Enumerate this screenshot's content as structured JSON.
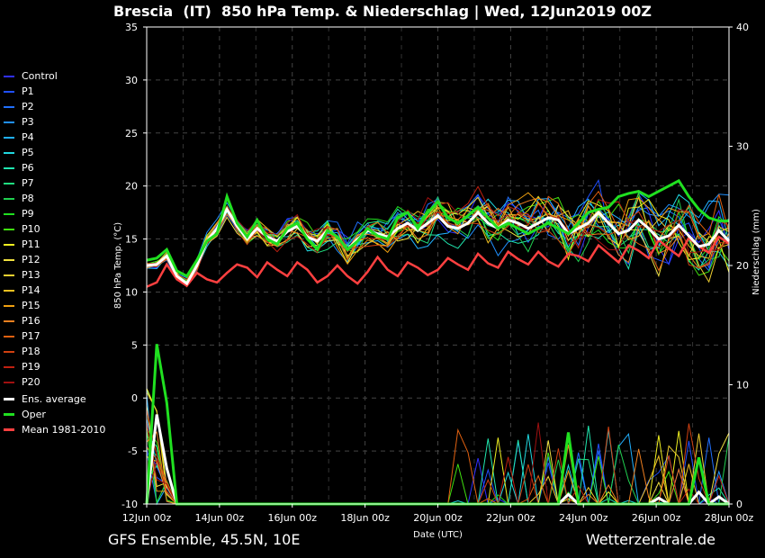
{
  "title": "Brescia  (IT)  850 hPa Temp. & Niederschlag | Wed, 12Jun2019 00Z",
  "footer_left": "GFS Ensemble, 45.5N, 10E",
  "footer_right": "Wetterzentrale.de",
  "chart_data": {
    "type": "line",
    "xlabel": "Date (UTC)",
    "ylabel": "850 hPa Temp. (°C)",
    "ylabel_right": "Niederschlag (mm)",
    "ylim": [
      -10,
      35
    ],
    "ylim_right": [
      0,
      40
    ],
    "yticks": [
      -10,
      -5,
      0,
      5,
      10,
      15,
      20,
      25,
      30,
      35
    ],
    "yticks_right": [
      0,
      10,
      20,
      30,
      40
    ],
    "x_range_days": [
      0,
      16
    ],
    "xticks": [
      {
        "day": 0,
        "label": "12Jun 00z"
      },
      {
        "day": 2,
        "label": "14Jun 00z"
      },
      {
        "day": 4,
        "label": "16Jun 00z"
      },
      {
        "day": 6,
        "label": "18Jun 00z"
      },
      {
        "day": 8,
        "label": "20Jun 00z"
      },
      {
        "day": 10,
        "label": "22Jun 00z"
      },
      {
        "day": 12,
        "label": "24Jun 00z"
      },
      {
        "day": 14,
        "label": "26Jun 00z"
      },
      {
        "day": 16,
        "label": "28Jun 00z"
      }
    ],
    "grid": true,
    "legend_position": "left",
    "legend": [
      {
        "name": "Control",
        "color": "#3030ff"
      },
      {
        "name": "P1",
        "color": "#2050ff"
      },
      {
        "name": "P2",
        "color": "#2070ff"
      },
      {
        "name": "P3",
        "color": "#2090ff"
      },
      {
        "name": "P4",
        "color": "#20b0ff"
      },
      {
        "name": "P5",
        "color": "#20d8e0"
      },
      {
        "name": "P6",
        "color": "#20e8b0"
      },
      {
        "name": "P7",
        "color": "#20e080"
      },
      {
        "name": "P8",
        "color": "#20d050"
      },
      {
        "name": "P9",
        "color": "#20e020"
      },
      {
        "name": "P10",
        "color": "#40e010"
      },
      {
        "name": "P11",
        "color": "#f0f020"
      },
      {
        "name": "P12",
        "color": "#f0e040"
      },
      {
        "name": "P13",
        "color": "#f0d030"
      },
      {
        "name": "P14",
        "color": "#f0c020"
      },
      {
        "name": "P15",
        "color": "#f0a010"
      },
      {
        "name": "P16",
        "color": "#f08020"
      },
      {
        "name": "P17",
        "color": "#e06010"
      },
      {
        "name": "P18",
        "color": "#d04010"
      },
      {
        "name": "P19",
        "color": "#c02010"
      },
      {
        "name": "P20",
        "color": "#a01010"
      },
      {
        "name": "Ens. average",
        "color": "#ffffff"
      },
      {
        "name": "Oper",
        "color": "#20e020"
      },
      {
        "name": "Mean 1981-2010",
        "color": "#ff4040"
      }
    ],
    "temp_avg": [
      12.5,
      12.6,
      13.4,
      11.5,
      10.8,
      12.5,
      14.8,
      16,
      17.8,
      16.2,
      15,
      16,
      15.2,
      14.8,
      15.7,
      16.2,
      15.2,
      14.8,
      15.8,
      15.2,
      14,
      15,
      15.8,
      15.5,
      15.2,
      16,
      16.5,
      15.8,
      16.5,
      17.2,
      16.2,
      16,
      16.5,
      17.5,
      16.5,
      16,
      16.8,
      16.5,
      16,
      16.5,
      17,
      16.8,
      15.5,
      16,
      16.5,
      17.5,
      16.5,
      15.5,
      15.8,
      16.8,
      16,
      15,
      15.3,
      16.3,
      15.3,
      14.3,
      14.5,
      15.8,
      14.8
    ],
    "temp_oper": [
      13,
      13.2,
      14,
      12,
      11.5,
      13,
      14.8,
      15.5,
      19,
      16.5,
      15.2,
      16.8,
      15,
      14.5,
      16,
      16.5,
      15,
      14,
      15.8,
      15.2,
      14,
      14.8,
      16,
      15.3,
      15,
      17,
      17.5,
      16,
      17.5,
      18.5,
      17,
      16.5,
      17.2,
      18,
      17,
      16,
      16.5,
      16,
      15.5,
      16,
      16.5,
      16,
      15.5,
      16.5,
      17.5,
      17.8,
      18,
      19,
      19.3,
      19.5,
      19,
      19.5,
      20,
      20.5,
      19,
      17.8,
      17,
      16.7,
      16.7
    ],
    "temp_mean": [
      10.5,
      10.9,
      12.6,
      11.2,
      10.6,
      11.8,
      11.2,
      10.9,
      11.8,
      12.6,
      12.3,
      11.4,
      12.8,
      12.1,
      11.5,
      12.8,
      12.1,
      10.9,
      11.5,
      12.5,
      11.5,
      10.8,
      11.9,
      13.3,
      12.1,
      11.5,
      12.8,
      12.3,
      11.6,
      12.1,
      13.2,
      12.6,
      12.1,
      13.6,
      12.7,
      12.3,
      13.8,
      13.1,
      12.6,
      13.8,
      12.9,
      12.4,
      13.6,
      13.4,
      12.9,
      14.4,
      13.6,
      12.8,
      14.4,
      13.9,
      13.2,
      14.9,
      14.1,
      13.4,
      15.1,
      14.3,
      13.7,
      15.2,
      14.6
    ],
    "precip_oper": [
      0,
      13.4,
      8.5,
      0,
      0,
      0,
      0,
      0,
      0,
      0,
      0,
      0,
      0,
      0,
      0,
      0,
      0,
      0,
      0,
      0,
      0,
      0,
      0,
      0,
      0,
      0,
      0,
      0,
      0,
      0,
      0,
      0,
      0,
      0,
      0,
      0,
      0,
      0,
      0,
      0,
      0,
      0,
      6,
      0,
      0,
      0,
      0,
      0,
      0,
      0,
      0,
      0,
      0,
      0,
      0,
      3.9,
      0,
      0,
      0
    ],
    "precip_avg": [
      0,
      7.5,
      3,
      0,
      0,
      0,
      0,
      0,
      0,
      0,
      0,
      0,
      0,
      0,
      0,
      0,
      0,
      0,
      0,
      0,
      0,
      0,
      0,
      0,
      0,
      0,
      0,
      0,
      0,
      0,
      0,
      0,
      0,
      0,
      0,
      0,
      0,
      0,
      0,
      0,
      0,
      0,
      0.8,
      0,
      0,
      0,
      0,
      0,
      0,
      0,
      0,
      0.5,
      0,
      0,
      0,
      1,
      0,
      0.6,
      0
    ]
  }
}
